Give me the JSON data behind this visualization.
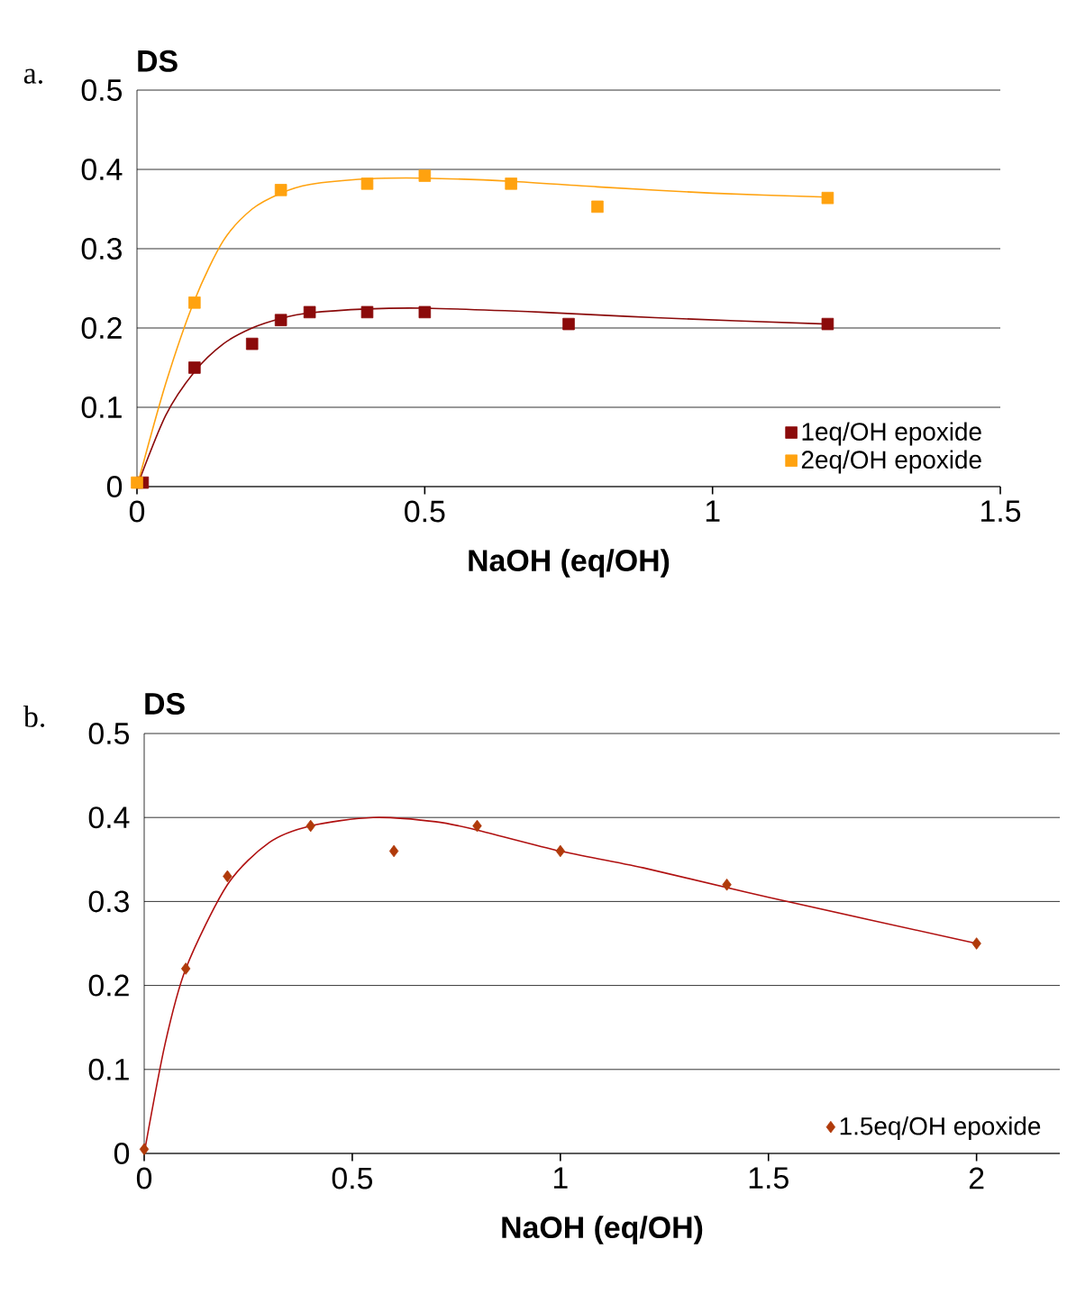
{
  "chart_data": [
    {
      "type": "scatter",
      "annotations": [
        "a."
      ],
      "ylabel": "DS",
      "xlabel": "NaOH (eq/OH)",
      "xlim": [
        0,
        1.5
      ],
      "ylim": [
        0,
        0.5
      ],
      "xticks": [
        0,
        0.5,
        1,
        1.5
      ],
      "yticks": [
        0,
        0.1,
        0.2,
        0.3,
        0.4,
        0.5
      ],
      "grid": "y",
      "legend": "bottom right",
      "series": [
        {
          "name": "1eq/OH epoxide",
          "marker": "square",
          "color": "#8b0a0a",
          "x": [
            0.01,
            0.1,
            0.2,
            0.25,
            0.3,
            0.4,
            0.5,
            0.75,
            1.2
          ],
          "values": [
            0.005,
            0.15,
            0.18,
            0.21,
            0.22,
            0.22,
            0.22,
            0.205,
            0.205
          ]
        },
        {
          "name": "2eq/OH epoxide",
          "marker": "square",
          "color": "#ffa20f",
          "x": [
            0,
            0.1,
            0.25,
            0.4,
            0.5,
            0.65,
            0.8,
            1.2
          ],
          "values": [
            0.005,
            0.232,
            0.374,
            0.382,
            0.392,
            0.382,
            0.353,
            0.364
          ]
        },
        {
          "type": "line",
          "color": "#8b0a0a",
          "x": [
            0,
            0.05,
            0.1,
            0.15,
            0.2,
            0.25,
            0.3,
            0.4,
            0.5,
            0.7,
            0.9,
            1.2
          ],
          "values": [
            0,
            0.09,
            0.145,
            0.18,
            0.2,
            0.212,
            0.219,
            0.224,
            0.225,
            0.22,
            0.213,
            0.205
          ]
        },
        {
          "type": "line",
          "color": "#ffa20f",
          "x": [
            0,
            0.05,
            0.1,
            0.15,
            0.2,
            0.25,
            0.3,
            0.4,
            0.5,
            0.65,
            0.8,
            1.0,
            1.2
          ],
          "values": [
            0,
            0.13,
            0.235,
            0.31,
            0.35,
            0.37,
            0.381,
            0.388,
            0.389,
            0.385,
            0.378,
            0.37,
            0.365
          ]
        }
      ]
    },
    {
      "type": "scatter",
      "annotations": [
        "b."
      ],
      "ylabel": "DS",
      "xlabel": "NaOH (eq/OH)",
      "xlim": [
        0,
        2.2
      ],
      "ylim": [
        0,
        0.5
      ],
      "xticks": [
        0,
        0.5,
        1,
        1.5,
        2
      ],
      "yticks": [
        0,
        0.1,
        0.2,
        0.3,
        0.4,
        0.5
      ],
      "grid": "y",
      "legend": "bottom right",
      "series": [
        {
          "name": "1.5eq/OH epoxide",
          "marker": "diamond",
          "color": "#b03a0a",
          "x": [
            0,
            0.1,
            0.2,
            0.4,
            0.6,
            0.8,
            1.0,
            1.4,
            2.0
          ],
          "values": [
            0.005,
            0.22,
            0.33,
            0.39,
            0.36,
            0.39,
            0.36,
            0.32,
            0.25
          ]
        },
        {
          "type": "line",
          "color": "#b01010",
          "x": [
            0,
            0.05,
            0.1,
            0.2,
            0.3,
            0.4,
            0.55,
            0.7,
            0.8,
            1.0,
            1.2,
            1.5,
            2.0
          ],
          "values": [
            0,
            0.13,
            0.22,
            0.32,
            0.37,
            0.39,
            0.4,
            0.395,
            0.385,
            0.36,
            0.34,
            0.305,
            0.25
          ]
        }
      ]
    }
  ]
}
